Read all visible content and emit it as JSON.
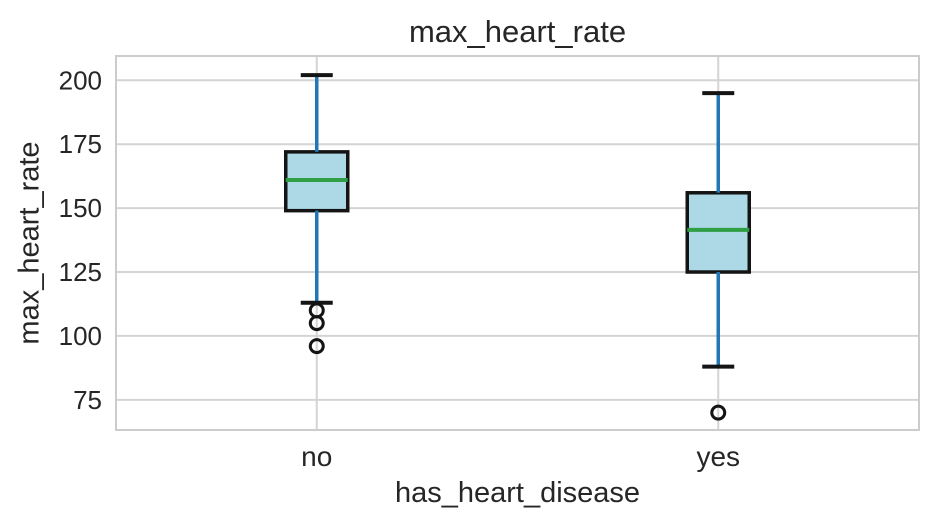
{
  "chart_data": {
    "type": "box",
    "title": "max_heart_rate",
    "xlabel": "has_heart_disease",
    "ylabel": "max_heart_rate",
    "categories": [
      "no",
      "yes"
    ],
    "yticks": [
      75,
      100,
      125,
      150,
      175,
      200
    ],
    "ylim": [
      63.2,
      209.5
    ],
    "grid": true,
    "series": [
      {
        "category": "no",
        "whisker_low": 113,
        "q1": 149,
        "median": 161,
        "q3": 172,
        "whisker_high": 202,
        "outliers": [
          110,
          105,
          96
        ]
      },
      {
        "category": "yes",
        "whisker_low": 88,
        "q1": 125,
        "median": 141.5,
        "q3": 156,
        "whisker_high": 195,
        "outliers": [
          70
        ]
      }
    ],
    "colors": {
      "box_fill": "#add8e6",
      "box_edge": "#141414",
      "median": "#2f9e44",
      "whisker": "#2277b4",
      "cap": "#141414",
      "outlier_edge": "#141414",
      "grid": "#d4d4d4",
      "spine": "#cccccc",
      "text": "#262626"
    }
  }
}
